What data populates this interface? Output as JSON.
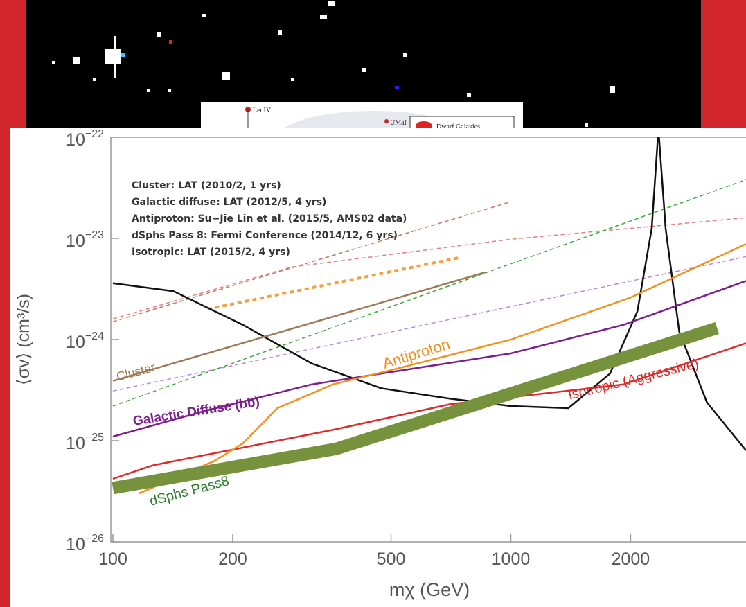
{
  "background": {
    "labels": [
      "LeoIV",
      "UMaI",
      "Dwarf Galaxies"
    ]
  },
  "chart_data": {
    "type": "line",
    "xlabel": "mχ (GeV)",
    "ylabel": "⟨σv⟩ (cm³/s)",
    "xlog": true,
    "ylog": true,
    "xlim": [
      100,
      3900
    ],
    "ylim": [
      1e-26,
      1e-22
    ],
    "xticks": [
      100,
      200,
      500,
      1000,
      2000
    ],
    "yticks": [
      {
        "value": 1e-22,
        "label": "10",
        "exponent": "−22"
      },
      {
        "value": 1e-23,
        "label": "10",
        "exponent": "−23"
      },
      {
        "value": 1e-24,
        "label": "10",
        "exponent": "−24"
      },
      {
        "value": 1e-25,
        "label": "10",
        "exponent": "−25"
      },
      {
        "value": 1e-26,
        "label": "10",
        "exponent": "−26"
      }
    ],
    "notes": [
      "Cluster: LAT (2010/2, 1 yrs)",
      "Galactic diffuse: LAT (2012/5, 4 yrs)",
      "Antiproton: Su−Jie Lin et al. (2015/5, AMS02 data)",
      "dSphs Pass 8: Fermi Conference (2014/12, 6 yrs)",
      "Isotropic: LAT (2015/2, 4 yrs)"
    ],
    "series": [
      {
        "color": "#c47a5a",
        "dash": "6,4",
        "width": 1.5,
        "x": [
          100,
          1000
        ],
        "values": [
          1.5e-24,
          2.3e-23
        ]
      },
      {
        "color": "#e88080",
        "dash": "6,4",
        "width": 1.5,
        "x": [
          100,
          280,
          1000,
          3900
        ],
        "values": [
          1.6e-24,
          5.2e-24,
          9.8e-24,
          1.6e-23
        ]
      },
      {
        "color": "#f5a040",
        "dash": "6,5",
        "width": 4,
        "x": [
          173,
          750
        ],
        "values": [
          2e-24,
          6.5e-24
        ]
      },
      {
        "color": "#b888d8",
        "dash": "6,4",
        "width": 1.5,
        "x": [
          100,
          3900
        ],
        "values": [
          3.1e-25,
          6.6e-24
        ]
      },
      {
        "color": "#3aa83a",
        "dash": "6,4",
        "width": 1.5,
        "x": [
          100,
          3900
        ],
        "values": [
          2.2e-25,
          3.8e-23
        ]
      },
      {
        "color": "#111111",
        "width": 2.5,
        "x": [
          100,
          142,
          212,
          316,
          472,
          705,
          1000,
          1395,
          1775,
          2080,
          2260,
          2350,
          2450,
          2650,
          3110,
          3900
        ],
        "values": [
          3.6e-24,
          3e-24,
          1.4e-24,
          5.8e-25,
          3.3e-25,
          2.6e-25,
          2.2e-25,
          2.1e-25,
          4.6e-25,
          1.9e-24,
          1.25e-23,
          1.2e-22,
          1.25e-23,
          1.2e-24,
          2.4e-25,
          8e-26
        ]
      },
      {
        "name": "Cluster",
        "color": "#9c7a55",
        "width": 2.5,
        "x": [
          100,
          860
        ],
        "values": [
          3.9e-25,
          4.6e-24
        ]
      },
      {
        "name": "Galactic Diffuse (bb)",
        "color": "#7a1f8c",
        "width": 2.5,
        "x": [
          100,
          173,
          316,
          1000,
          1920,
          3900
        ],
        "values": [
          1.1e-25,
          2e-25,
          3.6e-25,
          7.3e-25,
          1.4e-24,
          3.8e-24
        ]
      },
      {
        "name": "Isotropic (Aggressive)",
        "color": "#dd2a2a",
        "width": 2.5,
        "x": [
          100,
          126,
          364,
          705,
          1920,
          3900
        ],
        "values": [
          4.2e-26,
          5.7e-26,
          1.3e-25,
          2.3e-25,
          3.6e-25,
          9.2e-25
        ]
      },
      {
        "name": "Antiproton",
        "color": "#f29022",
        "width": 2.5,
        "x": [
          116,
          180,
          212,
          259,
          357,
          492,
          1000,
          2000,
          3900
        ],
        "values": [
          3e-26,
          6.3e-26,
          9.4e-26,
          2.1e-25,
          3.6e-25,
          4.9e-25,
          1e-24,
          2.6e-24,
          8.8e-24
        ]
      },
      {
        "name": "dSphs Pass8",
        "color": "#76923c",
        "width": 18,
        "x": [
          100,
          364,
          3300
        ],
        "values": [
          3.4e-26,
          8.3e-26,
          1.3e-24
        ]
      }
    ]
  }
}
